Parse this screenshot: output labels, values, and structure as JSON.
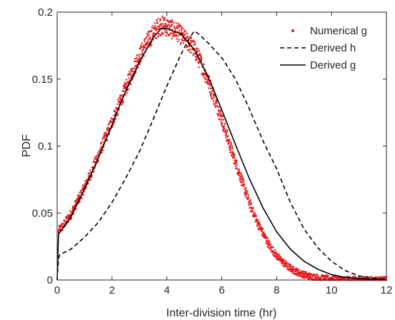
{
  "chart_data": {
    "type": "line",
    "xlabel": "Inter-division time (hr)",
    "ylabel": "PDF",
    "xlim": [
      0,
      12
    ],
    "ylim": [
      0,
      0.2
    ],
    "xticks": [
      0,
      2,
      4,
      6,
      8,
      10,
      12
    ],
    "xtick_labels": [
      "0",
      "2",
      "4",
      "6",
      "8",
      "10",
      "12"
    ],
    "yticks": [
      0,
      0.05,
      0.1,
      0.15,
      0.2
    ],
    "ytick_labels": [
      "0",
      "0.05",
      "0.1",
      "0.15",
      "0.2"
    ],
    "grid": false,
    "legend_position": "top-right",
    "series": [
      {
        "name": "Numerical g",
        "style": "scatter",
        "color": "#e8191c",
        "x": [
          0.05,
          0.1,
          0.2,
          0.3,
          0.4,
          0.5,
          0.6,
          0.7,
          0.8,
          0.9,
          1.0,
          1.1,
          1.2,
          1.3,
          1.4,
          1.5,
          1.6,
          1.7,
          1.8,
          1.9,
          2.0,
          2.1,
          2.2,
          2.3,
          2.4,
          2.5,
          2.6,
          2.7,
          2.8,
          2.9,
          3.0,
          3.1,
          3.2,
          3.3,
          3.4,
          3.5,
          3.6,
          3.7,
          3.8,
          3.9,
          4.0,
          4.1,
          4.2,
          4.3,
          4.4,
          4.5,
          4.6,
          4.7,
          4.8,
          4.9,
          5.0,
          5.1,
          5.2,
          5.3,
          5.4,
          5.5,
          5.6,
          5.7,
          5.8,
          5.9,
          6.0,
          6.1,
          6.2,
          6.3,
          6.4,
          6.5,
          6.6,
          6.7,
          6.8,
          6.9,
          7.0,
          7.1,
          7.2,
          7.3,
          7.4,
          7.5,
          7.6,
          7.7,
          7.8,
          7.9,
          8.0,
          8.1,
          8.2,
          8.3,
          8.4,
          8.5,
          8.6,
          8.7,
          8.8,
          8.9,
          9.0,
          9.1,
          9.2,
          9.3,
          9.4,
          9.5,
          9.6,
          9.7,
          9.8,
          9.9,
          10.0,
          10.1,
          10.2,
          10.3,
          10.4,
          10.5,
          10.6,
          10.7,
          10.8,
          10.9,
          11.0,
          11.1,
          11.2,
          11.3,
          11.4,
          11.5,
          11.6,
          11.7,
          11.8,
          11.9,
          12.0
        ],
        "y": [
          0.036,
          0.038,
          0.04,
          0.043,
          0.046,
          0.049,
          0.053,
          0.057,
          0.061,
          0.065,
          0.069,
          0.074,
          0.078,
          0.083,
          0.088,
          0.093,
          0.098,
          0.103,
          0.108,
          0.113,
          0.118,
          0.123,
          0.128,
          0.133,
          0.138,
          0.143,
          0.148,
          0.153,
          0.158,
          0.163,
          0.167,
          0.171,
          0.175,
          0.178,
          0.181,
          0.184,
          0.187,
          0.189,
          0.19,
          0.19,
          0.189,
          0.188,
          0.187,
          0.186,
          0.185,
          0.183,
          0.181,
          0.179,
          0.177,
          0.175,
          0.172,
          0.168,
          0.164,
          0.159,
          0.154,
          0.149,
          0.143,
          0.138,
          0.132,
          0.126,
          0.12,
          0.113,
          0.107,
          0.1,
          0.094,
          0.088,
          0.082,
          0.076,
          0.07,
          0.064,
          0.058,
          0.053,
          0.048,
          0.043,
          0.039,
          0.035,
          0.031,
          0.027,
          0.024,
          0.021,
          0.018,
          0.016,
          0.014,
          0.012,
          0.01,
          0.009,
          0.0075,
          0.0065,
          0.0055,
          0.0047,
          0.004,
          0.0034,
          0.0028,
          0.0024,
          0.002,
          0.0017,
          0.0014,
          0.0012,
          0.001,
          0.0008,
          0.0007,
          0.0006,
          0.0005,
          0.0004,
          0.0003,
          0.00025,
          0.0002,
          0.00015,
          0.0001,
          0.0001,
          0.0001,
          8e-05,
          6e-05,
          5e-05,
          4e-05,
          3e-05,
          2e-05,
          2e-05,
          1e-05,
          1e-05,
          0.0
        ]
      },
      {
        "name": "Derived h",
        "style": "dashed",
        "color": "#000000",
        "x": [
          0.0,
          0.05,
          0.1,
          0.5,
          1.0,
          1.5,
          2.0,
          2.5,
          3.0,
          3.5,
          4.0,
          4.5,
          4.8,
          5.0,
          5.2,
          5.5,
          6.0,
          6.5,
          7.0,
          7.5,
          8.0,
          8.5,
          9.0,
          9.5,
          10.0,
          10.5,
          11.0,
          11.5,
          12.0
        ],
        "y": [
          0.0,
          0.016,
          0.019,
          0.023,
          0.032,
          0.043,
          0.058,
          0.076,
          0.096,
          0.12,
          0.145,
          0.168,
          0.18,
          0.186,
          0.183,
          0.177,
          0.166,
          0.15,
          0.128,
          0.104,
          0.083,
          0.058,
          0.038,
          0.024,
          0.014,
          0.007,
          0.003,
          0.0015,
          0.0005
        ]
      },
      {
        "name": "Derived g",
        "style": "solid",
        "color": "#000000",
        "x": [
          0.0,
          0.05,
          0.1,
          0.3,
          0.5,
          1.0,
          1.5,
          2.0,
          2.5,
          3.0,
          3.5,
          3.8,
          4.0,
          4.2,
          4.5,
          5.0,
          5.5,
          6.0,
          6.5,
          7.0,
          7.5,
          8.0,
          8.5,
          9.0,
          9.5,
          10.0,
          10.5,
          11.0,
          11.5,
          12.0
        ],
        "y": [
          0.0,
          0.034,
          0.036,
          0.041,
          0.047,
          0.068,
          0.091,
          0.116,
          0.141,
          0.163,
          0.181,
          0.188,
          0.188,
          0.186,
          0.184,
          0.172,
          0.152,
          0.127,
          0.101,
          0.076,
          0.054,
          0.036,
          0.023,
          0.014,
          0.008,
          0.004,
          0.002,
          0.001,
          0.0005,
          0.0002
        ]
      }
    ]
  }
}
